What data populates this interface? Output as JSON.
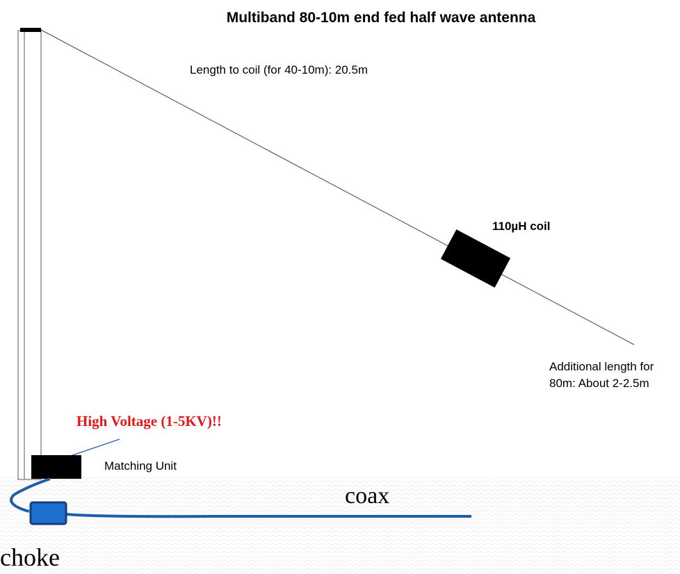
{
  "title": "Multiband 80-10m end fed half wave antenna",
  "labels": {
    "length_to_coil": "Length to coil (for 40-10m): 20.5m",
    "coil": "110µH coil",
    "additional_line1": "Additional length for",
    "additional_line2": "80m: About 2-2.5m",
    "high_voltage": "High Voltage (1-5KV)!!",
    "matching_unit": "Matching Unit",
    "coax": "coax",
    "choke": "choke"
  }
}
